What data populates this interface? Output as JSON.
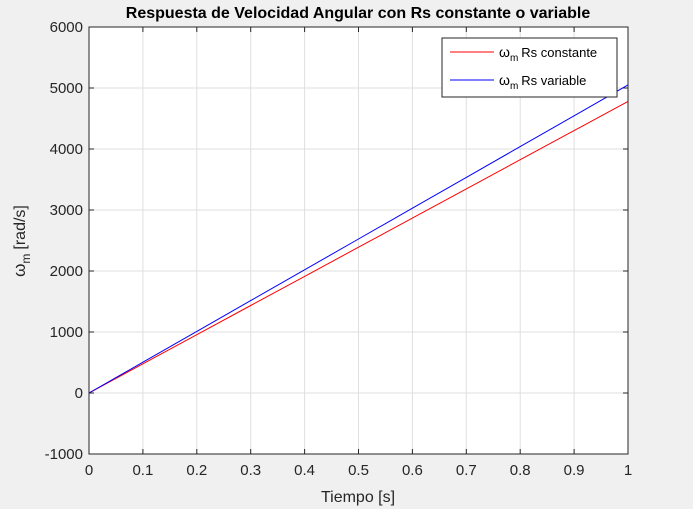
{
  "chart_data": {
    "type": "line",
    "title": "Respuesta de Velocidad Angular con Rs constante o variable",
    "xlabel": "Tiempo [s]",
    "ylabel_symbol": "ω",
    "ylabel_subscript": "m",
    "ylabel_unit": "[rad/s]",
    "xlim": [
      0,
      1
    ],
    "ylim": [
      -1000,
      6000
    ],
    "xticks": [
      0,
      0.1,
      0.2,
      0.3,
      0.4,
      0.5,
      0.6,
      0.7,
      0.8,
      0.9,
      1
    ],
    "xtick_labels": [
      "0",
      "0.1",
      "0.2",
      "0.3",
      "0.4",
      "0.5",
      "0.6",
      "0.7",
      "0.8",
      "0.9",
      "1"
    ],
    "yticks": [
      -1000,
      0,
      1000,
      2000,
      3000,
      4000,
      5000,
      6000
    ],
    "ytick_labels": [
      "-1000",
      "0",
      "1000",
      "2000",
      "3000",
      "4000",
      "5000",
      "6000"
    ],
    "grid": true,
    "legend_position": "top-right",
    "series": [
      {
        "name_symbol": "ω",
        "name_subscript": "m",
        "name_text": "Rs constante",
        "color": "#ff0000",
        "x": [
          0,
          0.1,
          0.2,
          0.3,
          0.4,
          0.5,
          0.6,
          0.7,
          0.8,
          0.9,
          1
        ],
        "y": [
          0,
          478,
          956,
          1434,
          1912,
          2390,
          2868,
          3346,
          3824,
          4302,
          4780
        ]
      },
      {
        "name_symbol": "ω",
        "name_subscript": "m",
        "name_text": "Rs variable",
        "color": "#0000ff",
        "x": [
          0,
          0.1,
          0.2,
          0.3,
          0.4,
          0.5,
          0.6,
          0.7,
          0.8,
          0.9,
          1
        ],
        "y": [
          0,
          505,
          1010,
          1515,
          2020,
          2525,
          3030,
          3535,
          4040,
          4545,
          5050
        ]
      }
    ]
  }
}
